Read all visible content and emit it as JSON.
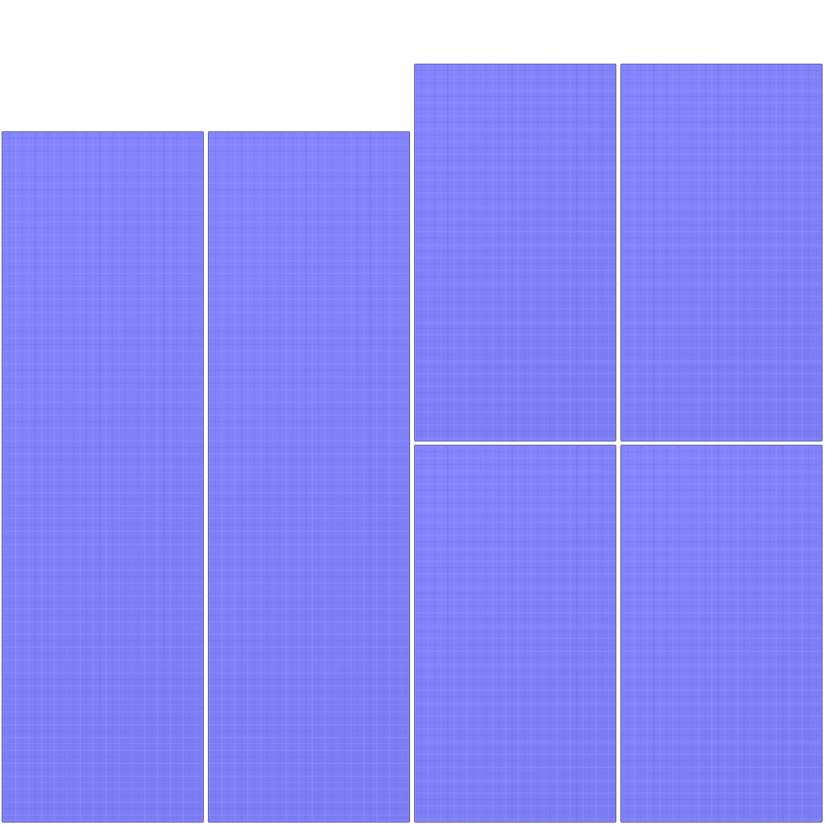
{
  "texture": {
    "base_color": "#8080fe",
    "border_color": "#5a5aa6",
    "background_color": "#ffffff",
    "panels": [
      {
        "id": "panel-1"
      },
      {
        "id": "panel-2"
      },
      {
        "id": "panel-3"
      },
      {
        "id": "panel-4"
      },
      {
        "id": "panel-5"
      },
      {
        "id": "panel-6"
      }
    ]
  }
}
